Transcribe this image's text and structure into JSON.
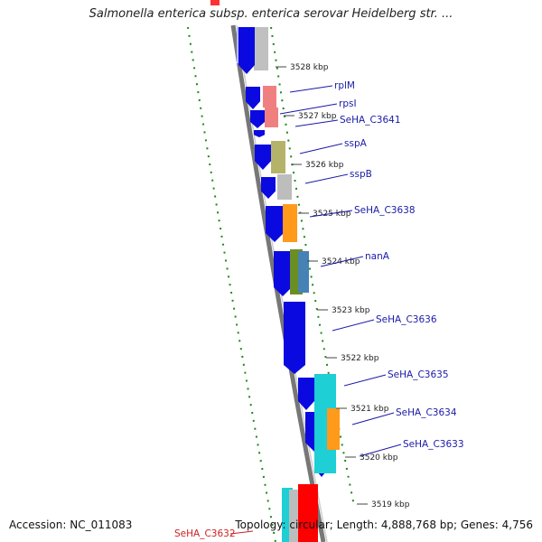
{
  "title": "Salmonella enterica subsp. enterica serovar Heidelberg str. ...",
  "footer": {
    "accession": "Accession: NC_011083",
    "topology": "Topology: circular; Length: 4,888,768 bp; Genes: 4,756"
  },
  "ticks": [
    "3528 kbp",
    "3527 kbp",
    "3526 kbp",
    "3525 kbp",
    "3524 kbp",
    "3523 kbp",
    "3522 kbp",
    "3521 kbp",
    "3520 kbp",
    "3519 kbp"
  ],
  "gene_labels": [
    {
      "name": "rplM",
      "color": "#1a1aa8"
    },
    {
      "name": "rpsI",
      "color": "#1a1aa8"
    },
    {
      "name": "SeHA_C3641",
      "color": "#1a1aa8"
    },
    {
      "name": "sspA",
      "color": "#1a1aa8"
    },
    {
      "name": "sspB",
      "color": "#1a1aa8"
    },
    {
      "name": "SeHA_C3638",
      "color": "#1a1aa8"
    },
    {
      "name": "nanA",
      "color": "#1a1aa8"
    },
    {
      "name": "SeHA_C3636",
      "color": "#1a1aa8"
    },
    {
      "name": "SeHA_C3635",
      "color": "#1a1aa8"
    },
    {
      "name": "SeHA_C3634",
      "color": "#1a1aa8"
    },
    {
      "name": "SeHA_C3633",
      "color": "#1a1aa8"
    },
    {
      "name": "SeHA_C3632",
      "color": "#cc2222"
    }
  ],
  "colors": {
    "cds": "#0a0ae0",
    "backbone": "#777777",
    "gc_skew": "#1a8a1a",
    "cog": [
      "#bdbdbd",
      "#f08080",
      "#b5b36a",
      "#ff9a1a",
      "#6b8e23",
      "#4682b4",
      "#1ecfd6",
      "#ff0000"
    ]
  }
}
